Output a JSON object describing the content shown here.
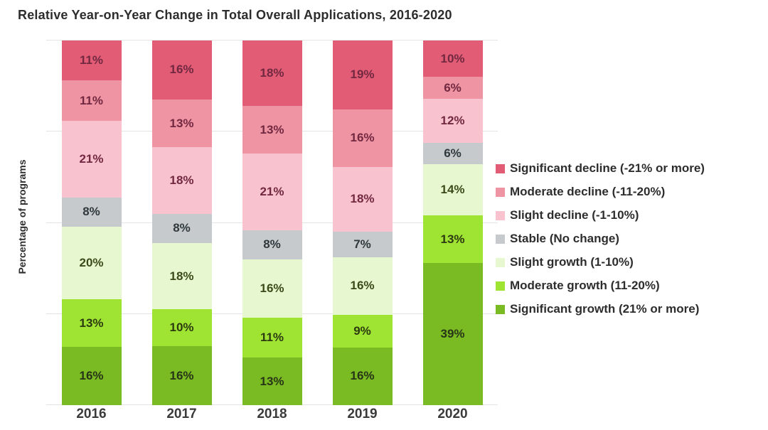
{
  "title": "Relative Year-on-Year Change in Total Overall Applications, 2016-2020",
  "ylabel": "Percentage of programs",
  "chart_data": {
    "type": "bar",
    "stacked": true,
    "percent_stacked": true,
    "title": "Relative Year-on-Year Change in Total Overall Applications, 2016-2020",
    "xlabel": "",
    "ylabel": "Percentage of programs",
    "categories": [
      "2016",
      "2017",
      "2018",
      "2019",
      "2020"
    ],
    "series": [
      {
        "name": "Significant decline (-21% or more)",
        "color": "#e25c76",
        "label_color": "#722840",
        "values": [
          11,
          16,
          18,
          19,
          10
        ]
      },
      {
        "name": "Moderate decline (-11-20%)",
        "color": "#ef94a3",
        "label_color": "#722840",
        "values": [
          11,
          13,
          13,
          16,
          6
        ]
      },
      {
        "name": "Slight decline (-1-10%)",
        "color": "#f8c2ce",
        "label_color": "#722840",
        "values": [
          21,
          18,
          21,
          18,
          12
        ]
      },
      {
        "name": "Stable (No change)",
        "color": "#c6cacc",
        "label_color": "#30383d",
        "values": [
          8,
          8,
          8,
          7,
          6
        ]
      },
      {
        "name": "Slight growth (1-10%)",
        "color": "#e7f8d0",
        "label_color": "#3c4a1a",
        "values": [
          20,
          18,
          16,
          16,
          14
        ]
      },
      {
        "name": "Moderate growth (11-20%)",
        "color": "#a0e433",
        "label_color": "#2c3a10",
        "values": [
          13,
          10,
          11,
          9,
          13
        ]
      },
      {
        "name": "Significant growth (21% or more)",
        "color": "#7aba22",
        "label_color": "#273517",
        "values": [
          16,
          16,
          13,
          16,
          39
        ]
      }
    ],
    "value_suffix": "%",
    "ylim": [
      0,
      100
    ],
    "grid": true,
    "gridline_percents": [
      0,
      25,
      50,
      75,
      100
    ],
    "legend_position": "right"
  }
}
